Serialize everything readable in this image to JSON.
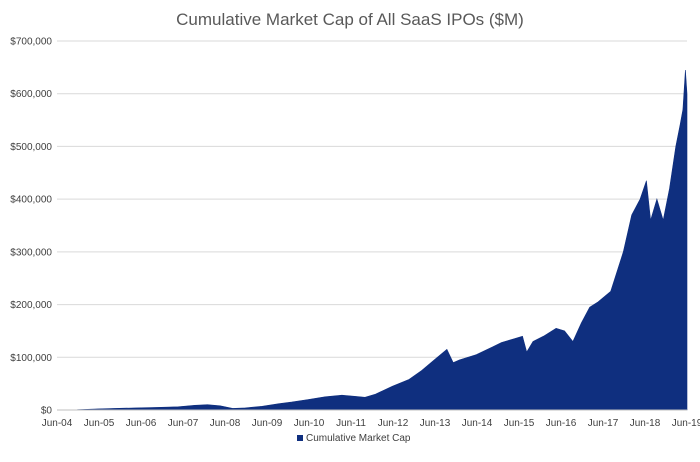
{
  "chart_data": {
    "type": "area",
    "title": "Cumulative Market Cap of All SaaS IPOs ($M)",
    "xlabel": "",
    "ylabel": "",
    "xlim": [
      2004.417,
      2019.417
    ],
    "ylim": [
      0,
      700000
    ],
    "y_ticks": [
      0,
      100000,
      200000,
      300000,
      400000,
      500000,
      600000,
      700000
    ],
    "y_tick_labels": [
      "$0",
      "$100,000",
      "$200,000",
      "$300,000",
      "$400,000",
      "$500,000",
      "$600,000",
      "$700,000"
    ],
    "x_ticks": [
      2004.417,
      2005.417,
      2006.417,
      2007.417,
      2008.417,
      2009.417,
      2010.417,
      2011.417,
      2012.417,
      2013.417,
      2014.417,
      2015.417,
      2016.417,
      2017.417,
      2018.417,
      2019.417
    ],
    "x_tick_labels": [
      "Jun-04",
      "Jun-05",
      "Jun-06",
      "Jun-07",
      "Jun-08",
      "Jun-09",
      "Jun-10",
      "Jun-11",
      "Jun-12",
      "Jun-13",
      "Jun-14",
      "Jun-15",
      "Jun-16",
      "Jun-17",
      "Jun-18",
      "Jun-19"
    ],
    "grid": "horizontal",
    "legend": "bottom-center",
    "colors": {
      "series": "#0f2f7f",
      "grid": "#d9d9d9",
      "title": "#595959"
    },
    "series": [
      {
        "name": "Cumulative Market Cap",
        "x": [
          2004.417,
          2004.9,
          2005.4,
          2005.8,
          2006.3,
          2006.8,
          2007.3,
          2007.7,
          2008.0,
          2008.3,
          2008.6,
          2008.9,
          2009.3,
          2009.7,
          2010.0,
          2010.4,
          2010.8,
          2011.2,
          2011.5,
          2011.75,
          2012.0,
          2012.4,
          2012.8,
          2013.1,
          2013.4,
          2013.7,
          2013.85,
          2014.0,
          2014.4,
          2014.8,
          2015.0,
          2015.3,
          2015.5,
          2015.6,
          2015.75,
          2016.0,
          2016.3,
          2016.5,
          2016.7,
          2016.9,
          2017.1,
          2017.3,
          2017.6,
          2017.9,
          2018.1,
          2018.3,
          2018.45,
          2018.55,
          2018.7,
          2018.85,
          2019.0,
          2019.15,
          2019.25,
          2019.32,
          2019.38,
          2019.417
        ],
        "values": [
          0,
          500,
          2000,
          3000,
          4000,
          5000,
          6000,
          9000,
          10000,
          8000,
          3000,
          4000,
          7000,
          12000,
          15000,
          20000,
          25000,
          28000,
          26000,
          24000,
          30000,
          45000,
          58000,
          75000,
          95000,
          115000,
          90000,
          95000,
          105000,
          120000,
          128000,
          135000,
          140000,
          110000,
          130000,
          140000,
          155000,
          150000,
          130000,
          165000,
          195000,
          205000,
          225000,
          300000,
          370000,
          400000,
          435000,
          360000,
          400000,
          360000,
          420000,
          500000,
          540000,
          570000,
          645000,
          600000
        ]
      }
    ]
  }
}
